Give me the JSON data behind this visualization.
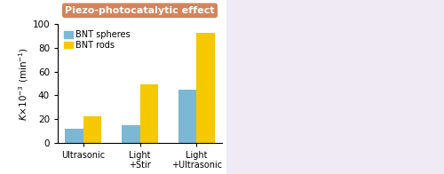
{
  "categories": [
    "Ultrasonic",
    "Light\n+Stir",
    "Light\n+Ultrasonic"
  ],
  "bnt_spheres": [
    12,
    15,
    45
  ],
  "bnt_rods": [
    22,
    49,
    93
  ],
  "bar_color_spheres": "#7bb8d4",
  "bar_color_rods": "#f5c800",
  "ylabel": "$K$$\\times$10$^{-3}$ (min$^{-1}$)",
  "ylim": [
    0,
    100
  ],
  "yticks": [
    0,
    20,
    40,
    60,
    80,
    100
  ],
  "title": "Piezo-photocatalytic effect",
  "title_bg_color": "#d4845a",
  "legend_labels": [
    "BNT spheres",
    "BNT rods"
  ],
  "bar_width": 0.32,
  "figsize": [
    5.0,
    1.96
  ],
  "dpi": 100,
  "right_bg_color": "#f0eaf5"
}
